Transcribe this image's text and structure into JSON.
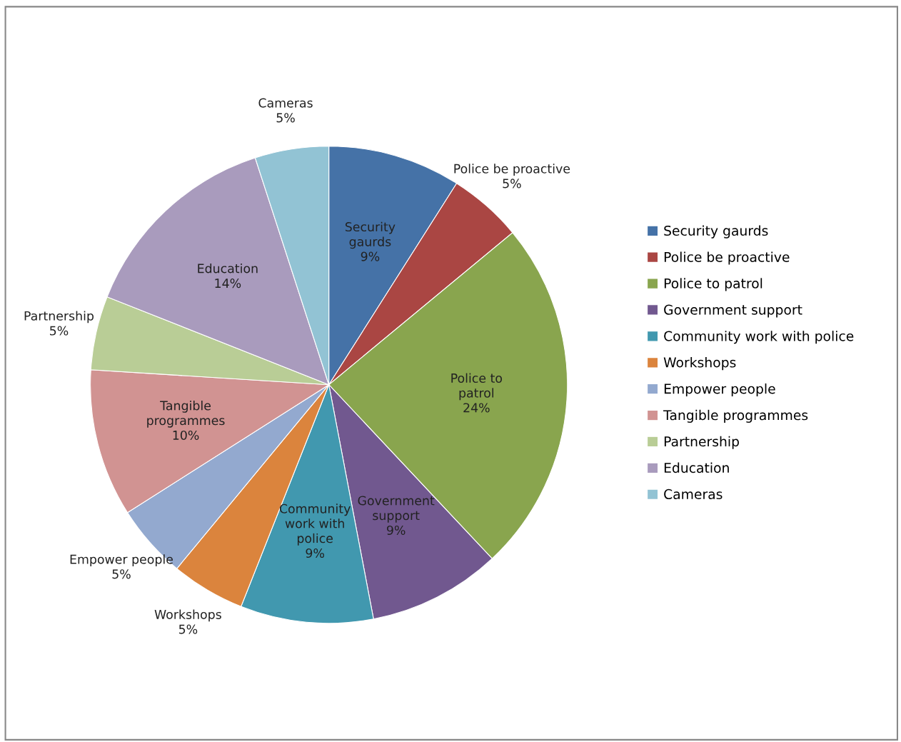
{
  "chart_data": {
    "type": "pie",
    "categories": [
      "Security gaurds",
      "Police be proactive",
      "Police to patrol",
      "Government support",
      "Community work with police",
      "Workshops",
      "Empower people",
      "Tangible programmes",
      "Partnership",
      "Education",
      "Cameras"
    ],
    "values": [
      9,
      5,
      24,
      9,
      9,
      5,
      5,
      10,
      5,
      14,
      5
    ],
    "value_labels": [
      "9%",
      "5%",
      "24%",
      "9%",
      "9%",
      "5%",
      "5%",
      "10%",
      "5%",
      "14%",
      "5%"
    ],
    "colors": [
      "#4572a7",
      "#aa4643",
      "#89a54e",
      "#71588f",
      "#4198af",
      "#db843d",
      "#93a9cf",
      "#d19392",
      "#b9cd96",
      "#a99bbd",
      "#92c3d4"
    ],
    "legend": "right"
  }
}
